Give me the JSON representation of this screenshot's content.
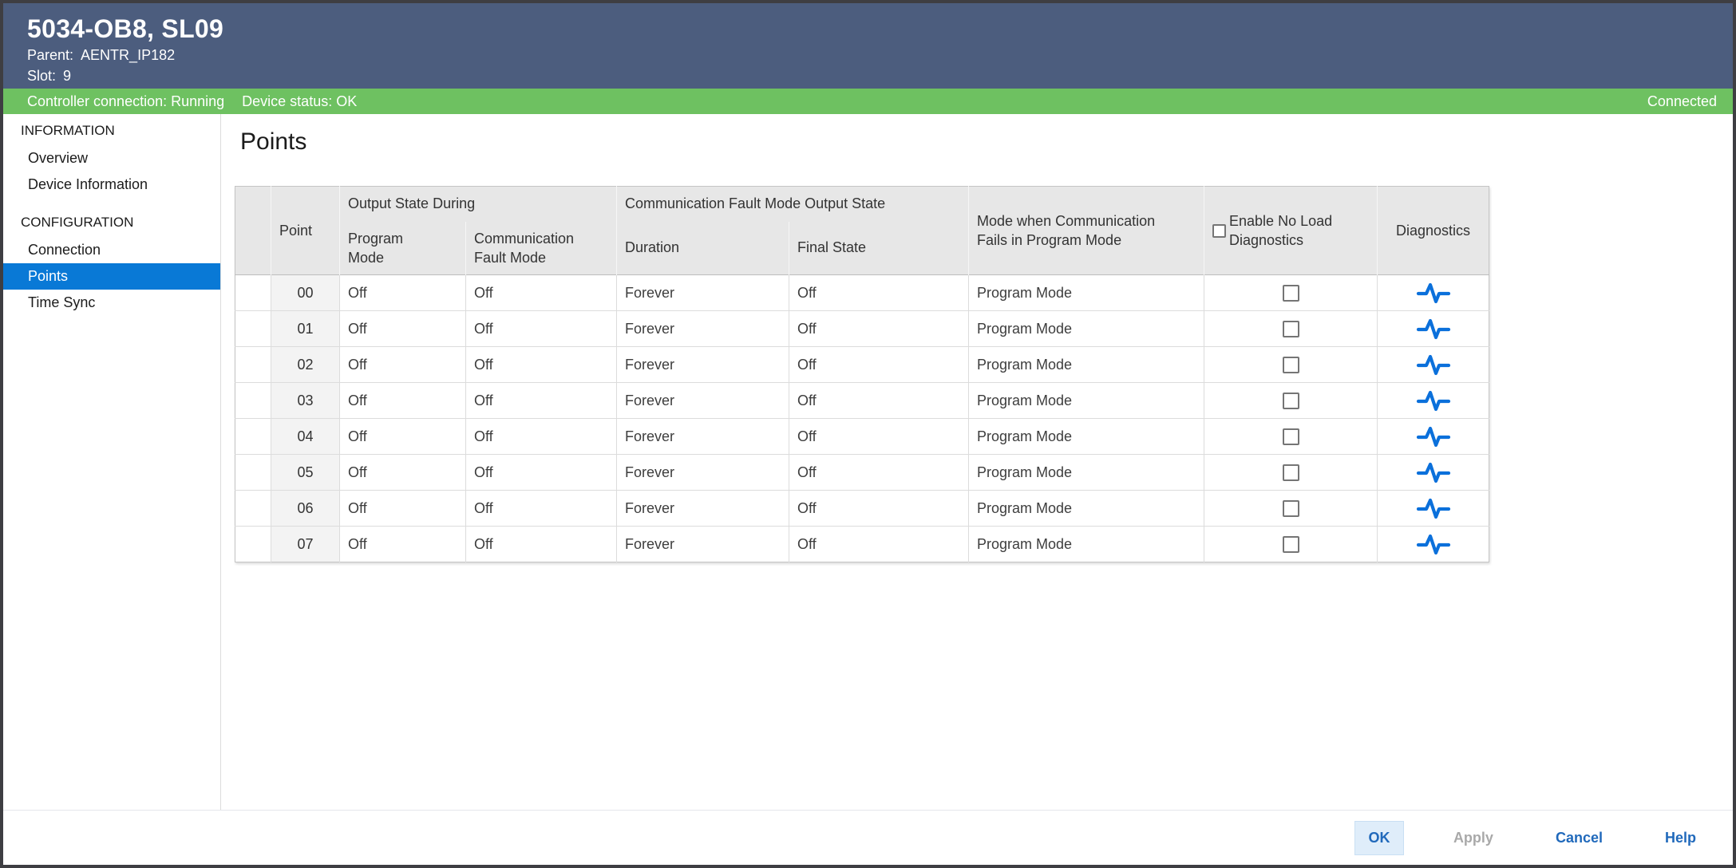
{
  "window": {
    "title": "5034-OB8, SL09",
    "parent_label": "Parent:",
    "parent_value": "AENTR_IP182",
    "slot_label": "Slot:",
    "slot_value": "9"
  },
  "status_bar": {
    "controller_connection": "Controller connection: Running",
    "device_status": "Device status: OK",
    "connection_state": "Connected"
  },
  "sidebar": {
    "sections": [
      {
        "label": "INFORMATION",
        "items": [
          {
            "label": "Overview",
            "selected": false
          },
          {
            "label": "Device Information",
            "selected": false
          }
        ]
      },
      {
        "label": "CONFIGURATION",
        "items": [
          {
            "label": "Connection",
            "selected": false
          },
          {
            "label": "Points",
            "selected": true
          },
          {
            "label": "Time Sync",
            "selected": false
          }
        ]
      }
    ]
  },
  "main": {
    "heading": "Points",
    "table": {
      "group_headers": {
        "output_state_during": "Output State During",
        "comm_fault_mode_output_state": "Communication Fault Mode Output State"
      },
      "headers": {
        "point": "Point",
        "program_mode": "Program Mode",
        "comm_fault_mode": "Communication Fault Mode",
        "duration": "Duration",
        "final_state": "Final State",
        "mode_when_comm_fails": "Mode when Communication Fails in Program Mode",
        "enable_no_load": "Enable No Load Diagnostics",
        "diagnostics": "Diagnostics"
      },
      "header_checkbox_checked": false,
      "diagnostics_icon": "pulse-waveform-icon",
      "rows": [
        {
          "point": "00",
          "program_mode": "Off",
          "comm_fault_mode": "Off",
          "duration": "Forever",
          "final_state": "Off",
          "mode_when_comm_fails": "Program Mode",
          "enable_no_load": false
        },
        {
          "point": "01",
          "program_mode": "Off",
          "comm_fault_mode": "Off",
          "duration": "Forever",
          "final_state": "Off",
          "mode_when_comm_fails": "Program Mode",
          "enable_no_load": false
        },
        {
          "point": "02",
          "program_mode": "Off",
          "comm_fault_mode": "Off",
          "duration": "Forever",
          "final_state": "Off",
          "mode_when_comm_fails": "Program Mode",
          "enable_no_load": false
        },
        {
          "point": "03",
          "program_mode": "Off",
          "comm_fault_mode": "Off",
          "duration": "Forever",
          "final_state": "Off",
          "mode_when_comm_fails": "Program Mode",
          "enable_no_load": false
        },
        {
          "point": "04",
          "program_mode": "Off",
          "comm_fault_mode": "Off",
          "duration": "Forever",
          "final_state": "Off",
          "mode_when_comm_fails": "Program Mode",
          "enable_no_load": false
        },
        {
          "point": "05",
          "program_mode": "Off",
          "comm_fault_mode": "Off",
          "duration": "Forever",
          "final_state": "Off",
          "mode_when_comm_fails": "Program Mode",
          "enable_no_load": false
        },
        {
          "point": "06",
          "program_mode": "Off",
          "comm_fault_mode": "Off",
          "duration": "Forever",
          "final_state": "Off",
          "mode_when_comm_fails": "Program Mode",
          "enable_no_load": false
        },
        {
          "point": "07",
          "program_mode": "Off",
          "comm_fault_mode": "Off",
          "duration": "Forever",
          "final_state": "Off",
          "mode_when_comm_fails": "Program Mode",
          "enable_no_load": false
        }
      ]
    }
  },
  "footer": {
    "buttons": [
      {
        "label": "OK",
        "state": "focused"
      },
      {
        "label": "Apply",
        "state": "disabled"
      },
      {
        "label": "Cancel",
        "state": "normal"
      },
      {
        "label": "Help",
        "state": "normal"
      }
    ]
  },
  "colors": {
    "titlebar_bg": "#4C5D7E",
    "status_bar_bg": "#6EC161",
    "sidebar_selected_bg": "#0979D6",
    "button_link_blue": "#2069BB",
    "ok_button_bg": "#DFEDFA",
    "pulse_icon": "#0B70DB"
  }
}
